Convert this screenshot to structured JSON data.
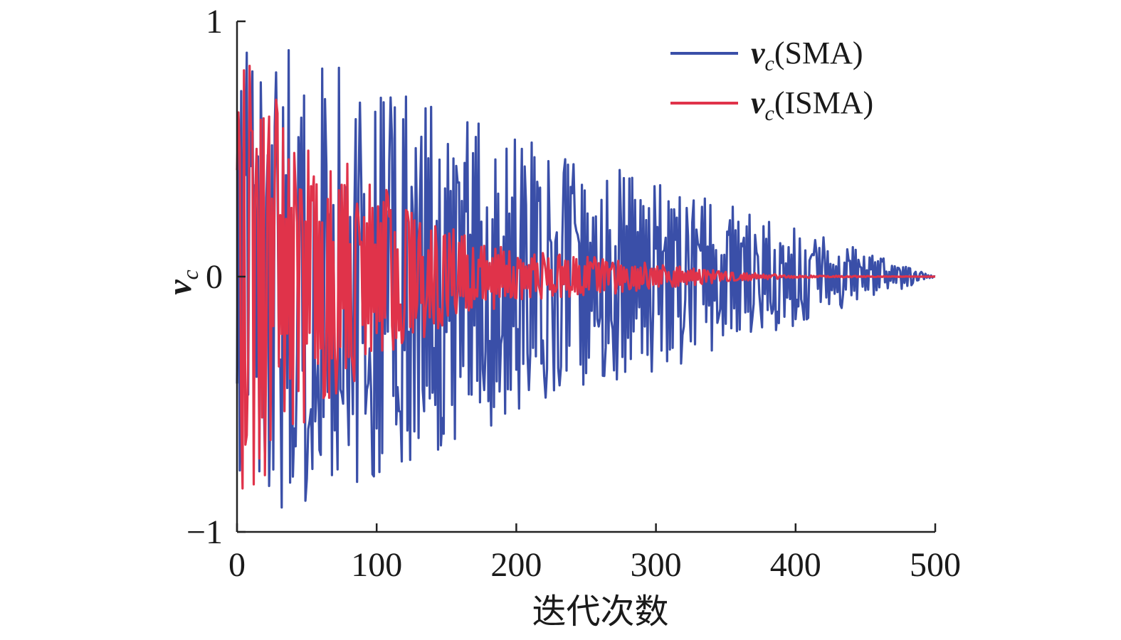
{
  "chart_data": {
    "type": "line",
    "title": "",
    "xlabel": "迭代次数",
    "ylabel": {
      "symbol": "v",
      "subscript": "c"
    },
    "xlim": [
      0,
      500
    ],
    "ylim": [
      -1,
      1
    ],
    "xticks": [
      0,
      100,
      200,
      300,
      400,
      500
    ],
    "xtick_labels": [
      "0",
      "100",
      "200",
      "300",
      "400",
      "500"
    ],
    "yticks": [
      -1,
      0,
      1
    ],
    "ytick_labels": [
      "−1",
      "0",
      "1"
    ],
    "grid": false,
    "legend_position": "top-right",
    "series": [
      {
        "name": "vc(SMA)",
        "legend_symbol": "v",
        "legend_subscript": "c",
        "legend_suffix": "(SMA)",
        "color": "#3a4fa8",
        "envelope": [
          [
            0,
            0.97
          ],
          [
            50,
            0.88
          ],
          [
            100,
            0.78
          ],
          [
            150,
            0.67
          ],
          [
            200,
            0.55
          ],
          [
            250,
            0.47
          ],
          [
            300,
            0.38
          ],
          [
            350,
            0.29
          ],
          [
            400,
            0.19
          ],
          [
            450,
            0.1
          ],
          [
            500,
            0.0
          ]
        ],
        "generator": "oscillating signal within envelope, approx 1 sample per iteration",
        "seed": 17
      },
      {
        "name": "vc(ISMA)",
        "legend_symbol": "v",
        "legend_subscript": "c",
        "legend_suffix": "(ISMA)",
        "color": "#e0334a",
        "envelope": [
          [
            0,
            0.95
          ],
          [
            30,
            0.7
          ],
          [
            60,
            0.5
          ],
          [
            100,
            0.38
          ],
          [
            130,
            0.25
          ],
          [
            170,
            0.15
          ],
          [
            200,
            0.1
          ],
          [
            250,
            0.08
          ],
          [
            300,
            0.05
          ],
          [
            350,
            0.02
          ],
          [
            400,
            0.005
          ],
          [
            500,
            0.0
          ]
        ],
        "generator": "oscillating signal within envelope, approx 1 sample per iteration",
        "seed": 42
      }
    ]
  }
}
